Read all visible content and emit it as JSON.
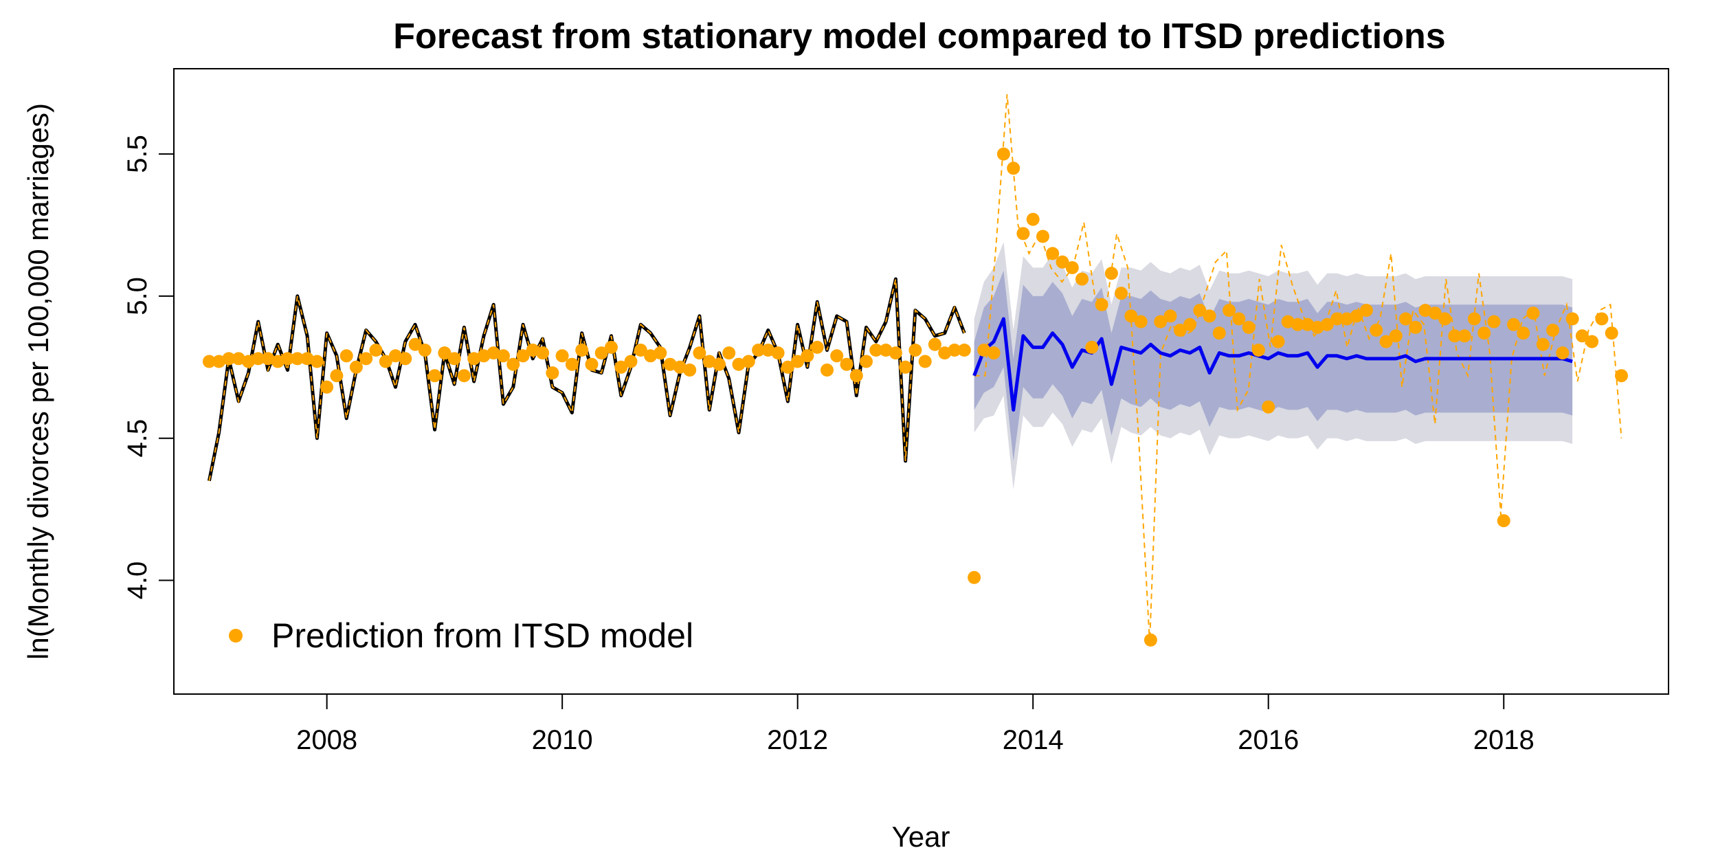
{
  "chart_data": {
    "type": "line",
    "title": "Forecast from stationary model compared to ITSD predictions",
    "xlabel": "Year",
    "ylabel": "ln(Monthly divorces per 100,000 marriages)",
    "xlim": [
      2006.7,
      2019.4
    ],
    "ylim": [
      3.6,
      5.8
    ],
    "x_ticks": [
      2008,
      2010,
      2012,
      2014,
      2016,
      2018
    ],
    "x_tick_labels": [
      "2008",
      "2010",
      "2012",
      "2014",
      "2016",
      "2018"
    ],
    "y_ticks": [
      4.0,
      4.5,
      5.0,
      5.5
    ],
    "y_tick_labels": [
      "4.0",
      "4.5",
      "5.0",
      "5.5"
    ],
    "grid": false,
    "legend": {
      "position": "bottom-left",
      "entries": [
        {
          "label": "Prediction from ITSD model",
          "color": "#ffa500",
          "marker": "circle"
        }
      ]
    },
    "colors": {
      "observed": "#000000",
      "observed_overlay": "#ffa500",
      "forecast": "#0000ee",
      "itsd": "#ffa500",
      "band80": "#a9aed0",
      "band95": "#d9dae2"
    },
    "start_year": 2007.0,
    "step": 0.08333,
    "observed": [
      4.35,
      4.52,
      4.78,
      4.63,
      4.73,
      4.91,
      4.74,
      4.83,
      4.74,
      5.0,
      4.86,
      4.5,
      4.87,
      4.79,
      4.57,
      4.74,
      4.88,
      4.84,
      4.78,
      4.68,
      4.84,
      4.9,
      4.8,
      4.53,
      4.8,
      4.69,
      4.89,
      4.7,
      4.86,
      4.97,
      4.62,
      4.68,
      4.9,
      4.78,
      4.85,
      4.68,
      4.66,
      4.59,
      4.87,
      4.74,
      4.73,
      4.86,
      4.65,
      4.75,
      4.9,
      4.87,
      4.82,
      4.58,
      4.73,
      4.82,
      4.93,
      4.6,
      4.8,
      4.71,
      4.52,
      4.76,
      4.8,
      4.88,
      4.8,
      4.63,
      4.9,
      4.75,
      4.98,
      4.81,
      4.93,
      4.91,
      4.65,
      4.89,
      4.84,
      4.91,
      5.06,
      4.42,
      4.95,
      4.92,
      4.86,
      4.87,
      4.96,
      4.87
    ],
    "itsd_pre": [
      4.77,
      4.77,
      4.78,
      4.78,
      4.77,
      4.78,
      4.78,
      4.77,
      4.78,
      4.78,
      4.78,
      4.77,
      4.68,
      4.72,
      4.79,
      4.75,
      4.78,
      4.81,
      4.77,
      4.79,
      4.78,
      4.83,
      4.81,
      4.72,
      4.8,
      4.78,
      4.72,
      4.78,
      4.79,
      4.8,
      4.79,
      4.76,
      4.79,
      4.81,
      4.8,
      4.73,
      4.79,
      4.76,
      4.81,
      4.76,
      4.8,
      4.82,
      4.75,
      4.77,
      4.81,
      4.79,
      4.8,
      4.76,
      4.75,
      4.74,
      4.8,
      4.77,
      4.76,
      4.8,
      4.76,
      4.77,
      4.81,
      4.81,
      4.8,
      4.75,
      4.77,
      4.79,
      4.82,
      4.74,
      4.79,
      4.76,
      4.72,
      4.77,
      4.81,
      4.81,
      4.8,
      4.75,
      4.81,
      4.77,
      4.83,
      4.8,
      4.81,
      4.81
    ],
    "forecast_start": 2013.5,
    "forecast": [
      4.72,
      4.81,
      4.84,
      4.92,
      4.6,
      4.86,
      4.82,
      4.82,
      4.87,
      4.83,
      4.75,
      4.81,
      4.8,
      4.85,
      4.69,
      4.82,
      4.81,
      4.8,
      4.83,
      4.8,
      4.79,
      4.81,
      4.8,
      4.82,
      4.73,
      4.8,
      4.79,
      4.79,
      4.8,
      4.79,
      4.78,
      4.8,
      4.79,
      4.79,
      4.8,
      4.75,
      4.79,
      4.79,
      4.78,
      4.79,
      4.78,
      4.78,
      4.78,
      4.78,
      4.79,
      4.77,
      4.78,
      4.78,
      4.78,
      4.78,
      4.78,
      4.78,
      4.78,
      4.78,
      4.78,
      4.78,
      4.78,
      4.78,
      4.78,
      4.78,
      4.78,
      4.77
    ],
    "band80_halfwidth": [
      0.12,
      0.15,
      0.16,
      0.17,
      0.18,
      0.18,
      0.18,
      0.18,
      0.18,
      0.18,
      0.18,
      0.18,
      0.18,
      0.18,
      0.18,
      0.18,
      0.19,
      0.19,
      0.19,
      0.19,
      0.19,
      0.19,
      0.19,
      0.19,
      0.19,
      0.19,
      0.19,
      0.19,
      0.19,
      0.19,
      0.19,
      0.19,
      0.19,
      0.19,
      0.19,
      0.19,
      0.19,
      0.19,
      0.19,
      0.19,
      0.19,
      0.19,
      0.19,
      0.19,
      0.19,
      0.19,
      0.19,
      0.19,
      0.19,
      0.19,
      0.19,
      0.19,
      0.19,
      0.19,
      0.19,
      0.19,
      0.19,
      0.19,
      0.19,
      0.19,
      0.19,
      0.19
    ],
    "band95_halfwidth": [
      0.2,
      0.24,
      0.26,
      0.27,
      0.28,
      0.28,
      0.28,
      0.28,
      0.28,
      0.28,
      0.28,
      0.28,
      0.28,
      0.28,
      0.28,
      0.28,
      0.29,
      0.29,
      0.29,
      0.29,
      0.29,
      0.29,
      0.29,
      0.29,
      0.29,
      0.29,
      0.29,
      0.29,
      0.29,
      0.29,
      0.29,
      0.29,
      0.29,
      0.29,
      0.29,
      0.29,
      0.29,
      0.29,
      0.29,
      0.29,
      0.29,
      0.29,
      0.29,
      0.29,
      0.29,
      0.29,
      0.29,
      0.29,
      0.29,
      0.29,
      0.29,
      0.29,
      0.29,
      0.29,
      0.29,
      0.29,
      0.29,
      0.29,
      0.29,
      0.29,
      0.29,
      0.29
    ],
    "itsd_line_post": [
      4.72,
      4.72,
      5.18,
      5.71,
      5.25,
      5.15,
      5.22,
      5.1,
      5.05,
      5.1,
      5.26,
      5.0,
      4.95,
      5.22,
      5.1,
      4.5,
      3.78,
      4.8,
      4.9,
      4.86,
      4.88,
      5.0,
      5.12,
      5.16,
      4.6,
      4.67,
      5.06,
      4.82,
      5.18,
      5.04,
      4.93,
      4.86,
      4.9,
      5.02,
      4.82,
      4.96,
      4.85,
      4.92,
      5.15,
      4.68,
      4.95,
      4.9,
      4.55,
      5.06,
      4.8,
      4.72,
      5.08,
      4.8,
      4.23,
      4.78,
      4.92,
      4.95,
      4.72,
      4.88,
      4.97,
      4.7,
      4.88,
      4.95,
      4.97,
      4.5
    ],
    "itsd_points_post": [
      4.01,
      4.81,
      4.8,
      5.5,
      5.45,
      5.22,
      5.27,
      5.21,
      5.15,
      5.12,
      5.1,
      5.06,
      4.82,
      4.97,
      5.08,
      5.01,
      4.93,
      4.91,
      3.79,
      4.91,
      4.93,
      4.88,
      4.9,
      4.95,
      4.93,
      4.87,
      4.95,
      4.92,
      4.89,
      4.81,
      4.61,
      4.84,
      4.91,
      4.9,
      4.9,
      4.89,
      4.9,
      4.92,
      4.92,
      4.93,
      4.95,
      4.88,
      4.84,
      4.86,
      4.92,
      4.89,
      4.95,
      4.94,
      4.92,
      4.86,
      4.86,
      4.92,
      4.87,
      4.91,
      4.21,
      4.9,
      4.87,
      4.94,
      4.83,
      4.88,
      4.8,
      4.92,
      4.86,
      4.84,
      4.92,
      4.87,
      4.72
    ]
  }
}
